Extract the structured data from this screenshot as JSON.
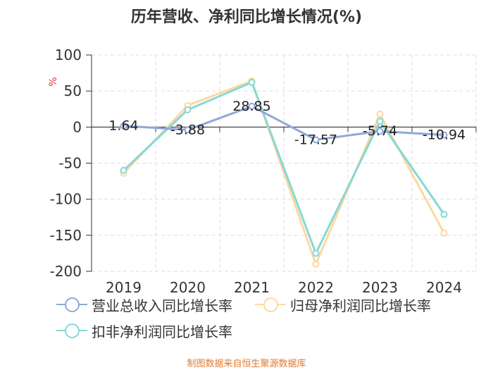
{
  "chart_data": {
    "type": "line",
    "title": "历年营收、净利同比增长情况(%)",
    "ylabel": "%",
    "xlabel": "",
    "categories": [
      "2019",
      "2020",
      "2021",
      "2022",
      "2023",
      "2024"
    ],
    "ylim": [
      -200,
      100
    ],
    "yticks": [
      100,
      50,
      0,
      -50,
      -100,
      -150,
      -200
    ],
    "grid": true,
    "legend_position": "bottom",
    "series": [
      {
        "name": "营业总收入同比增长率",
        "color": "#8fa8d8",
        "values": [
          1.64,
          -3.88,
          28.85,
          -17.57,
          -5.74,
          -10.94
        ]
      },
      {
        "name": "归母净利润同比增长率",
        "color": "#fbd9a0",
        "values": [
          -64,
          30,
          64,
          -190,
          18,
          -147
        ]
      },
      {
        "name": "扣非净利润同比增长率",
        "color": "#86d8d8",
        "values": [
          -60,
          24,
          62,
          -175,
          8,
          -121
        ]
      }
    ],
    "data_labels": [
      "1.64",
      "-3.88",
      "28.85",
      "-17.57",
      "-5.74",
      "-10.94"
    ]
  },
  "source_note": "制图数据来自恒生聚源数据库"
}
